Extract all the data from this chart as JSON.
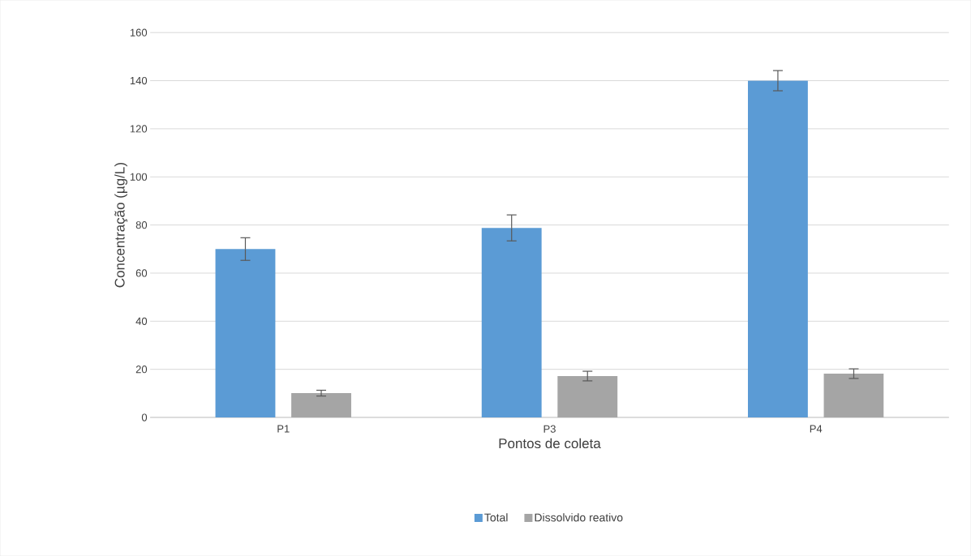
{
  "chart_data": {
    "type": "bar",
    "xlabel": "Pontos de coleta",
    "ylabel": "Concentração  (µg/L)",
    "categories": [
      "P1",
      "P3",
      "P4"
    ],
    "series": [
      {
        "name": "Total",
        "color": "#5b9bd5",
        "values": [
          70,
          78.8,
          140
        ],
        "errors": [
          4.7,
          5.4,
          4.2
        ]
      },
      {
        "name": "Dissolvido reativo",
        "color": "#a5a5a5",
        "values": [
          10.1,
          17.2,
          18.2
        ],
        "errors": [
          1.2,
          2,
          2
        ]
      }
    ],
    "ylim": [
      0,
      160
    ],
    "yticks": [
      0,
      20,
      40,
      60,
      80,
      100,
      120,
      140,
      160
    ],
    "grid": "y",
    "legend": "bottom"
  }
}
